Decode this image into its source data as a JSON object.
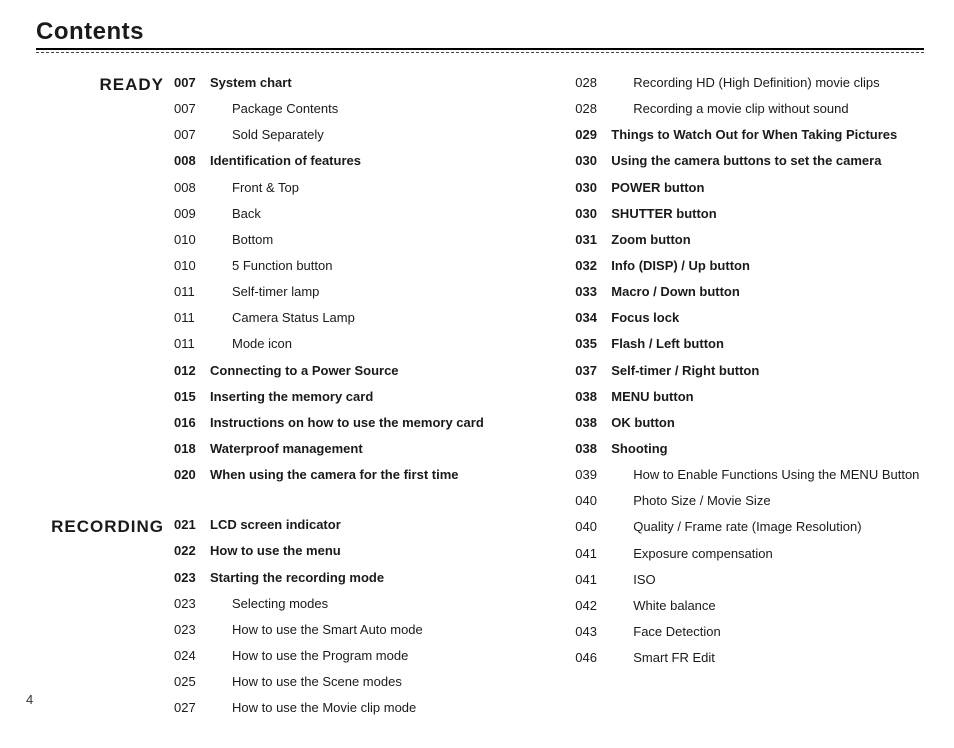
{
  "title": "Contents",
  "page_number": "4",
  "sections": {
    "ready_label": "READY",
    "recording_label": "RECORDING"
  },
  "ready": [
    {
      "pg": "007",
      "txt": "System chart",
      "bold": true,
      "indent": false
    },
    {
      "pg": "007",
      "txt": "Package Contents",
      "bold": false,
      "indent": true
    },
    {
      "pg": "007",
      "txt": "Sold Separately",
      "bold": false,
      "indent": true
    },
    {
      "pg": "008",
      "txt": "Identification of features",
      "bold": true,
      "indent": false
    },
    {
      "pg": "008",
      "txt": "Front & Top",
      "bold": false,
      "indent": true
    },
    {
      "pg": "009",
      "txt": "Back",
      "bold": false,
      "indent": true
    },
    {
      "pg": "010",
      "txt": "Bottom",
      "bold": false,
      "indent": true
    },
    {
      "pg": "010",
      "txt": "5 Function button",
      "bold": false,
      "indent": true
    },
    {
      "pg": "011",
      "txt": "Self-timer lamp",
      "bold": false,
      "indent": true
    },
    {
      "pg": "011",
      "txt": "Camera Status Lamp",
      "bold": false,
      "indent": true
    },
    {
      "pg": "011",
      "txt": "Mode icon",
      "bold": false,
      "indent": true
    },
    {
      "pg": "012",
      "txt": "Connecting to a Power Source",
      "bold": true,
      "indent": false
    },
    {
      "pg": "015",
      "txt": "Inserting the memory card",
      "bold": true,
      "indent": false
    },
    {
      "pg": "016",
      "txt": "Instructions on how to use the memory card",
      "bold": true,
      "indent": false
    },
    {
      "pg": "018",
      "txt": "Waterproof management",
      "bold": true,
      "indent": false
    },
    {
      "pg": "020",
      "txt": "When using the camera for the first time",
      "bold": true,
      "indent": false
    }
  ],
  "recording": [
    {
      "pg": "021",
      "txt": "LCD screen indicator",
      "bold": true,
      "indent": false
    },
    {
      "pg": "022",
      "txt": "How to use the menu",
      "bold": true,
      "indent": false
    },
    {
      "pg": "023",
      "txt": "Starting the recording mode",
      "bold": true,
      "indent": false
    },
    {
      "pg": "023",
      "txt": "Selecting modes",
      "bold": false,
      "indent": true
    },
    {
      "pg": "023",
      "txt": "How to use the Smart Auto mode",
      "bold": false,
      "indent": true
    },
    {
      "pg": "024",
      "txt": "How to use the Program mode",
      "bold": false,
      "indent": true
    },
    {
      "pg": "025",
      "txt": "How to use the Scene modes",
      "bold": false,
      "indent": true
    },
    {
      "pg": "027",
      "txt": "How to use the Movie clip mode",
      "bold": false,
      "indent": true
    }
  ],
  "right": [
    {
      "pg": "028",
      "txt": "Recording HD (High Definition) movie clips",
      "bold": false,
      "indent": true
    },
    {
      "pg": "028",
      "txt": "Recording a movie clip without sound",
      "bold": false,
      "indent": true
    },
    {
      "pg": "029",
      "txt": "Things to Watch Out for When Taking Pictures",
      "bold": true,
      "indent": false
    },
    {
      "pg": "030",
      "txt": "Using the camera buttons to set the camera",
      "bold": true,
      "indent": false
    },
    {
      "pg": "030",
      "txt": "POWER button",
      "bold": true,
      "indent": false
    },
    {
      "pg": "030",
      "txt": "SHUTTER button",
      "bold": true,
      "indent": false
    },
    {
      "pg": "031",
      "txt": "Zoom button",
      "bold": true,
      "indent": false
    },
    {
      "pg": "032",
      "txt": "Info (DISP) / Up button",
      "bold": true,
      "indent": false
    },
    {
      "pg": "033",
      "txt": "Macro / Down button",
      "bold": true,
      "indent": false
    },
    {
      "pg": "034",
      "txt": "Focus lock",
      "bold": true,
      "indent": false
    },
    {
      "pg": "035",
      "txt": "Flash / Left button",
      "bold": true,
      "indent": false
    },
    {
      "pg": "037",
      "txt": "Self-timer / Right button",
      "bold": true,
      "indent": false
    },
    {
      "pg": "038",
      "txt": "MENU button",
      "bold": true,
      "indent": false
    },
    {
      "pg": "038",
      "txt": "OK button",
      "bold": true,
      "indent": false
    },
    {
      "pg": "038",
      "txt": "Shooting",
      "bold": true,
      "indent": false
    },
    {
      "pg": "039",
      "txt": "How to Enable Functions Using the MENU Button",
      "bold": false,
      "indent": true
    },
    {
      "pg": "040",
      "txt": "Photo Size / Movie Size",
      "bold": false,
      "indent": true
    },
    {
      "pg": "040",
      "txt": "Quality / Frame rate (Image Resolution)",
      "bold": false,
      "indent": true
    },
    {
      "pg": "041",
      "txt": "Exposure compensation",
      "bold": false,
      "indent": true
    },
    {
      "pg": "041",
      "txt": "ISO",
      "bold": false,
      "indent": true
    },
    {
      "pg": "042",
      "txt": "White balance",
      "bold": false,
      "indent": true
    },
    {
      "pg": "043",
      "txt": "Face Detection",
      "bold": false,
      "indent": true
    },
    {
      "pg": "046",
      "txt": "Smart FR Edit",
      "bold": false,
      "indent": true
    }
  ]
}
